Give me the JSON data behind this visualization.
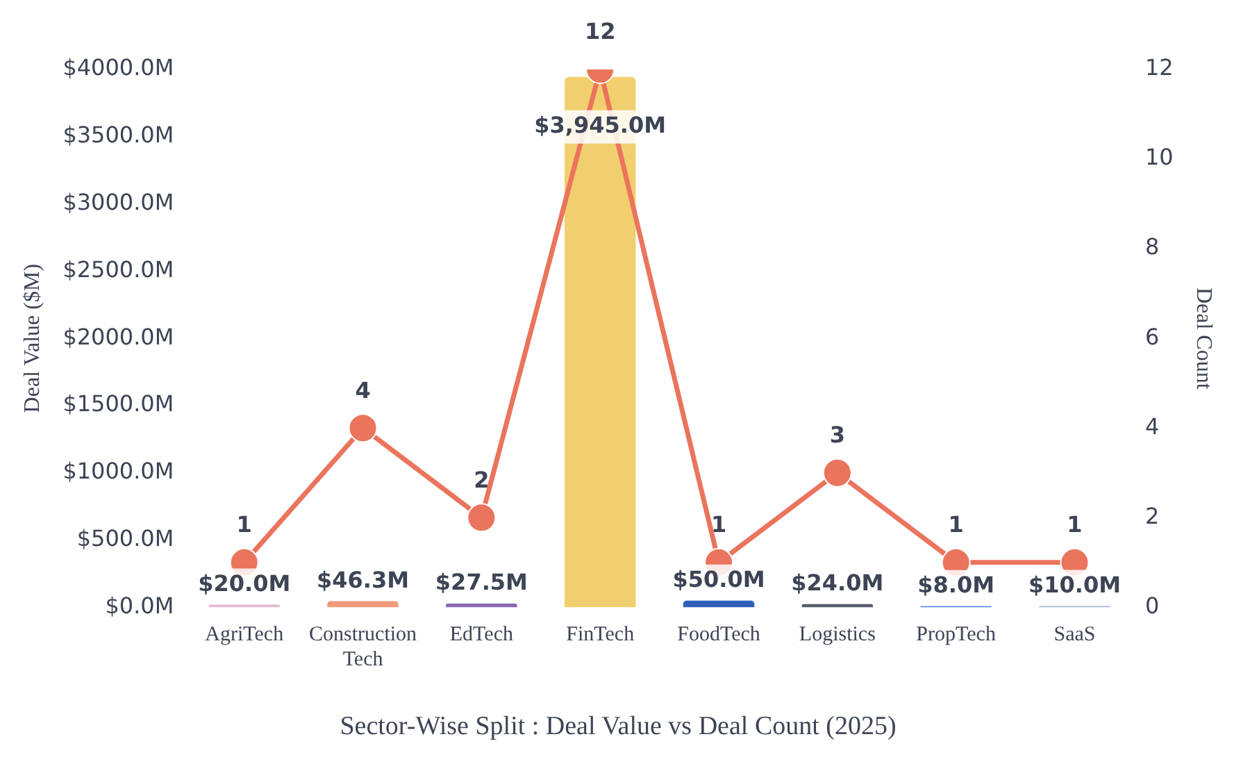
{
  "chart_data": {
    "type": "bar",
    "title": "Sector-Wise Split : Deal Value vs Deal Count (2025)",
    "ylabel": "Deal Value ($M)",
    "y2label": "Deal Count",
    "categories": [
      "AgriTech",
      "Construction Tech",
      "EdTech",
      "FinTech",
      "FoodTech",
      "Logistics",
      "PropTech",
      "SaaS"
    ],
    "series": [
      {
        "colors": [
          "#e6b8d2",
          "#f09a7c",
          "#8a68b3",
          "#f2cf6e",
          "#2f5fb8",
          "#555b68",
          "#4a7de8",
          "#a3b6d2"
        ],
        "values": [
          20.0,
          46.3,
          27.5,
          3945.0,
          50.0,
          24.0,
          8.0,
          10.0
        ],
        "value_labels": [
          "$20.0M",
          "$46.3M",
          "$27.5M",
          "$3,945.0M",
          "$50.0M",
          "$24.0M",
          "$8.0M",
          "$10.0M"
        ]
      },
      {
        "type": "line",
        "axis": "y2",
        "color": "#ea745c",
        "values": [
          1,
          4,
          2,
          12,
          1,
          3,
          1,
          1
        ],
        "value_labels": [
          "1",
          "4",
          "2",
          "12",
          "1",
          "3",
          "1",
          "1"
        ]
      }
    ],
    "ylim": [
      0,
      4000
    ],
    "yticks": [
      {
        "value": 0,
        "label": "$0.0M"
      },
      {
        "value": 500,
        "label": "$500.0M"
      },
      {
        "value": 1000,
        "label": "$1000.0M"
      },
      {
        "value": 1500,
        "label": "$1500.0M"
      },
      {
        "value": 2000,
        "label": "$2000.0M"
      },
      {
        "value": 2500,
        "label": "$2500.0M"
      },
      {
        "value": 3000,
        "label": "$3000.0M"
      },
      {
        "value": 3500,
        "label": "$3500.0M"
      },
      {
        "value": 4000,
        "label": "$4000.0M"
      }
    ],
    "y2lim": [
      0,
      12
    ],
    "y2ticks": [
      0,
      2,
      4,
      6,
      8,
      10,
      12
    ],
    "grid": false,
    "legend": false,
    "marker": "circle",
    "line_style": "solid"
  }
}
